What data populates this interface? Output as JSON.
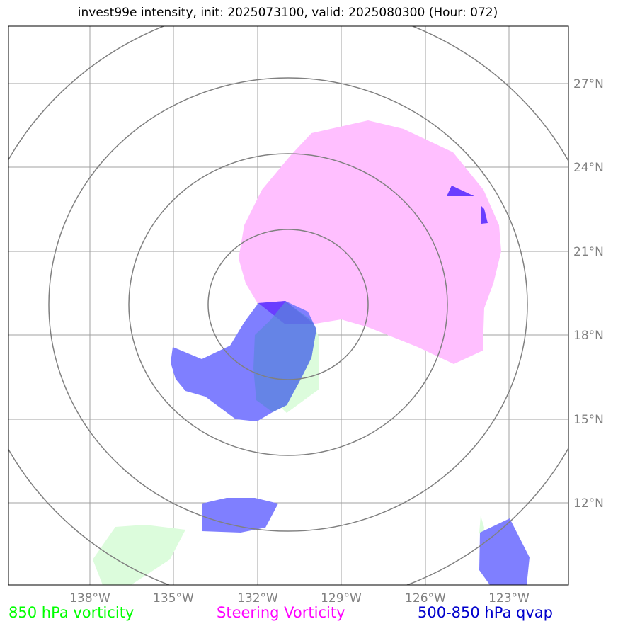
{
  "title": "invest99e intensity, init: 2025073100, valid: 2025080300 (Hour: 072)",
  "longitude_labels": [
    "138°W",
    "135°W",
    "132°W",
    "129°W",
    "126°W",
    "123°W"
  ],
  "latitude_labels": [
    "27°N",
    "24°N",
    "21°N",
    "18°N",
    "15°N",
    "12°N"
  ],
  "legend": [
    {
      "label": "850 hPa vorticity",
      "color": "#00ff00"
    },
    {
      "label": "Steering Vorticity",
      "color": "#ff00ff"
    },
    {
      "label": "500-850 hPa qvap",
      "color": "#0000cc"
    }
  ],
  "colors": {
    "grid": "#a0a0a0",
    "range_rings": "#808080",
    "vorticity_850_fill": "#dcfcdc",
    "steering_vorticity_fill": "#ffbfff",
    "qvap_fill": "#7f7fff",
    "overlap_fill": "#6a3dff"
  }
}
